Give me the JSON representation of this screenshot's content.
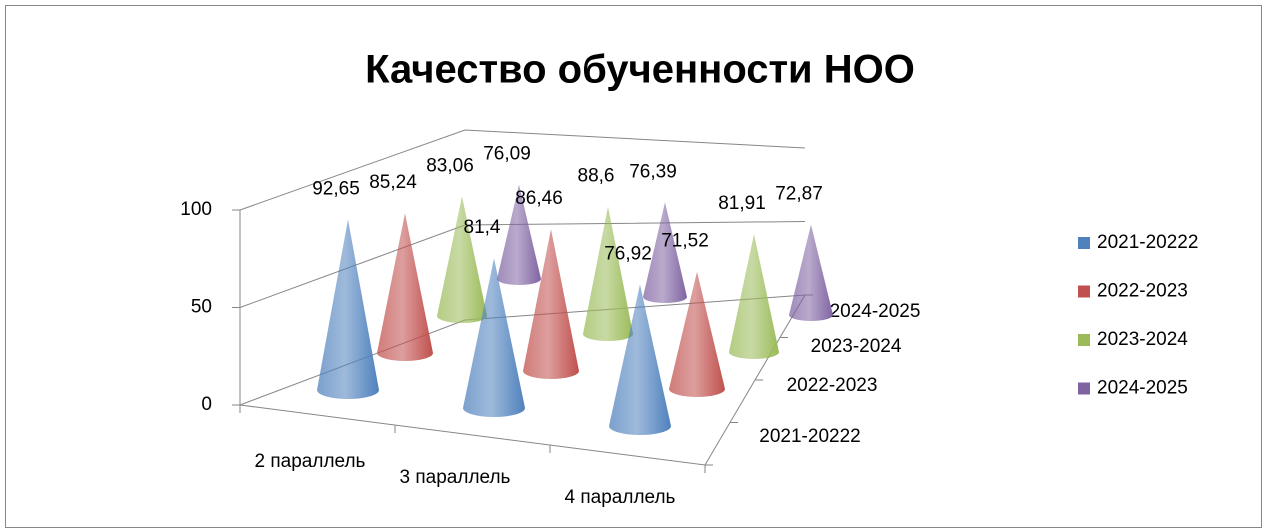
{
  "chart_data": {
    "type": "cone3d",
    "title": "Качество обученности НОО",
    "categories": [
      "2 параллель",
      "3 параллель",
      "4 параллель"
    ],
    "series": [
      {
        "name": "2021-20222",
        "color": "#4f81bd",
        "values": [
          92.65,
          81.4,
          76.92
        ],
        "value_labels": [
          "92,65",
          "81,4",
          "76,92"
        ]
      },
      {
        "name": "2022-2023",
        "color": "#c0504d",
        "values": [
          85.24,
          86.46,
          71.52
        ],
        "value_labels": [
          "85,24",
          "86,46",
          "71,52"
        ]
      },
      {
        "name": "2023-2024",
        "color": "#9bbb59",
        "values": [
          83.06,
          88.6,
          81.91
        ],
        "value_labels": [
          "83,06",
          "88,6",
          "81,91"
        ]
      },
      {
        "name": "2024-2025",
        "color": "#8064a2",
        "values": [
          76.09,
          76.39,
          72.87
        ],
        "value_labels": [
          "76,09",
          "76,39",
          "72,87"
        ]
      }
    ],
    "ylim": [
      0,
      100
    ],
    "yticks": [
      0,
      50,
      100
    ],
    "grid": true,
    "legend": "right"
  }
}
